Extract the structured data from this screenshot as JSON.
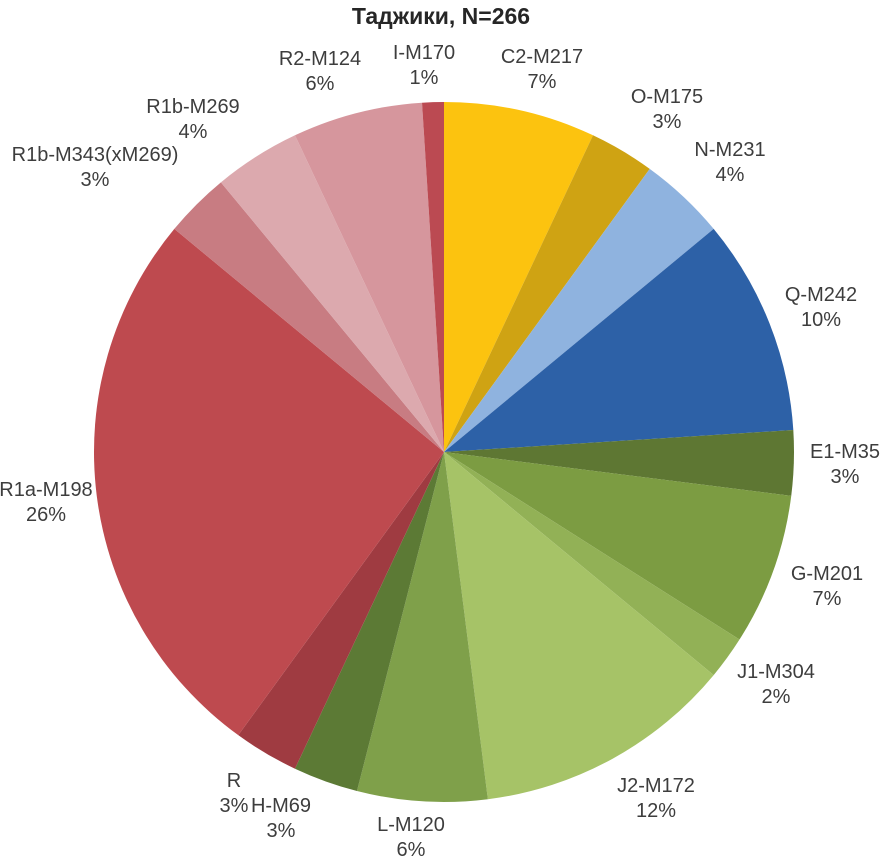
{
  "chart_data": {
    "type": "pie",
    "title": "Таджики, N=266",
    "sample_size": 266,
    "legend_position": "none",
    "start_angle_deg": 0,
    "direction": "clockwise",
    "label_style": "outside, name over percent",
    "slices": [
      {
        "label": "C2-M217",
        "pct": 7,
        "color": "#FCC30F"
      },
      {
        "label": "O-M175",
        "pct": 3,
        "color": "#CFA313"
      },
      {
        "label": "N-M231",
        "pct": 4,
        "color": "#8FB3DF"
      },
      {
        "label": "Q-M242",
        "pct": 10,
        "color": "#2D61A7"
      },
      {
        "label": "E1-M35",
        "pct": 3,
        "color": "#5E7733"
      },
      {
        "label": "G-M201",
        "pct": 7,
        "color": "#7C9C42"
      },
      {
        "label": "J1-M304",
        "pct": 2,
        "color": "#92B156"
      },
      {
        "label": "J2-M172",
        "pct": 12,
        "color": "#A6C367"
      },
      {
        "label": "L-M120",
        "pct": 6,
        "color": "#7FA04A"
      },
      {
        "label": "H-M69",
        "pct": 3,
        "color": "#5C7A35"
      },
      {
        "label": "R",
        "pct": 3,
        "color": "#9F3B41"
      },
      {
        "label": "R1a-M198",
        "pct": 26,
        "color": "#BE4A4F"
      },
      {
        "label": "R1b-M343(xM269)",
        "pct": 3,
        "color": "#C87C82"
      },
      {
        "label": "R1b-M269",
        "pct": 4,
        "color": "#DCA9AE"
      },
      {
        "label": "R2-M124",
        "pct": 6,
        "color": "#D6969D"
      },
      {
        "label": "I-M170",
        "pct": 1,
        "color": "#BB4A52"
      }
    ]
  }
}
